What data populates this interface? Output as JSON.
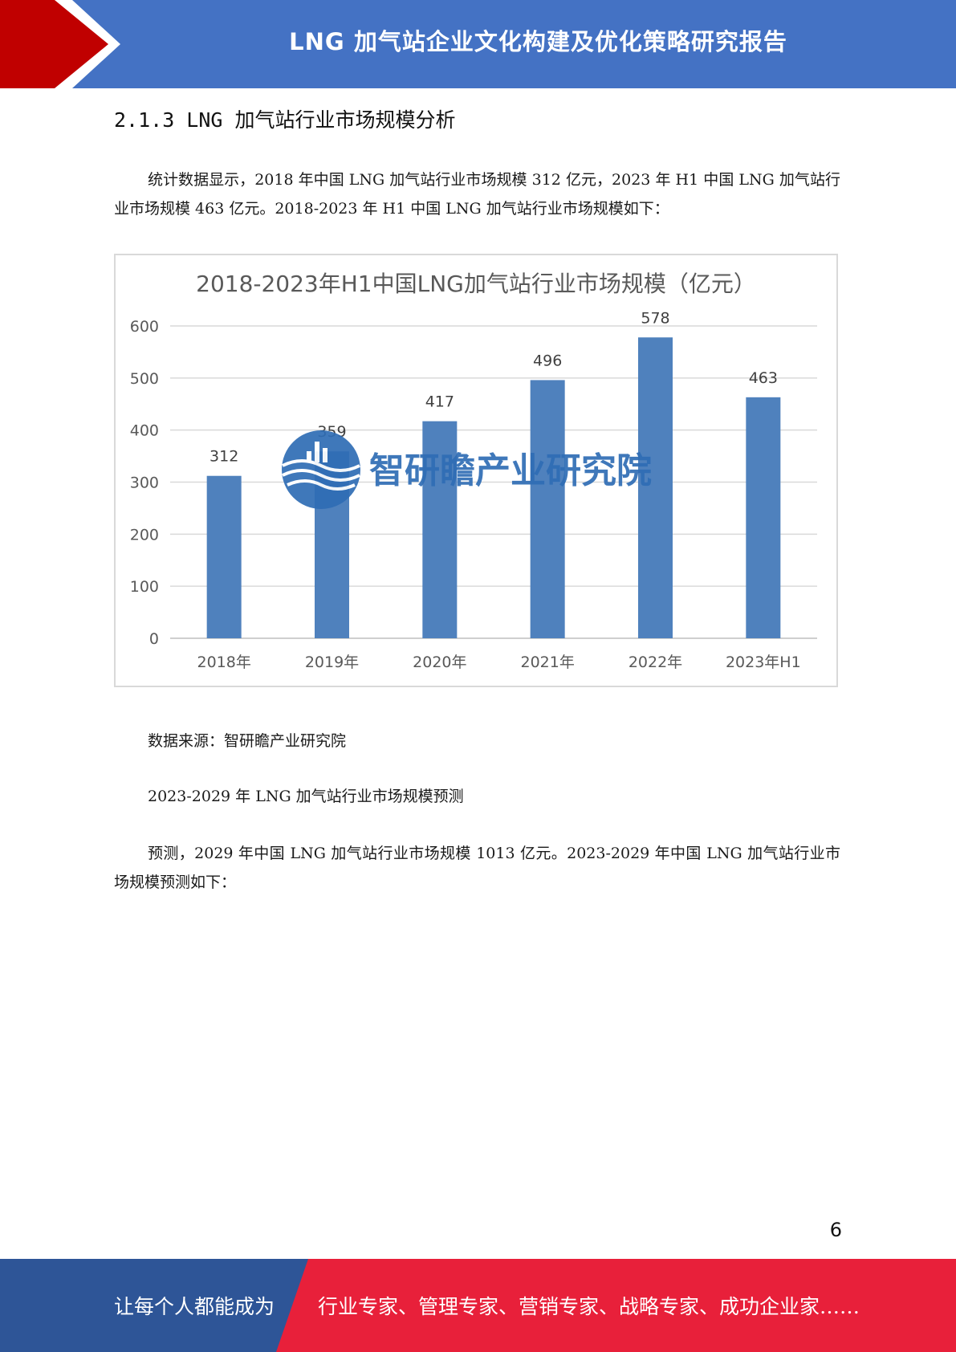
{
  "header": {
    "title": "LNG 加气站企业文化构建及优化策略研究报告"
  },
  "section": {
    "heading": "2.1.3 LNG 加气站行业市场规模分析"
  },
  "paragraphs": {
    "intro": "统计数据显示，2018 年中国 LNG 加气站行业市场规模 312 亿元，2023 年 H1 中国 LNG 加气站行业市场规模 463 亿元。2018-2023 年 H1 中国 LNG 加气站行业市场规模如下：",
    "source": "数据来源：智研瞻产业研究院",
    "forecast_heading": "2023-2029 年 LNG 加气站行业市场规模预测",
    "forecast": "预测，2029 年中国 LNG 加气站行业市场规模 1013 亿元。2023-2029 年中国 LNG 加气站行业市场规模预测如下："
  },
  "chart_data": {
    "type": "bar",
    "title": "2018-2023年H1中国LNG加气站行业市场规模（亿元）",
    "categories": [
      "2018年",
      "2019年",
      "2020年",
      "2021年",
      "2022年",
      "2023年H1"
    ],
    "values": [
      312,
      359,
      417,
      496,
      578,
      463
    ],
    "yticks": [
      0,
      100,
      200,
      300,
      400,
      500,
      600
    ],
    "ylim": [
      0,
      600
    ],
    "bar_color": "#4f81bd",
    "grid": true,
    "legend": "none",
    "watermark": "智研瞻产业研究院"
  },
  "page": {
    "number": "6"
  },
  "footer": {
    "left": "让每个人都能成为",
    "right": "行业专家、管理专家、营销专家、战略专家、成功企业家……"
  },
  "colors": {
    "header_blue": "#4472c4",
    "accent_red": "#c00000",
    "footer_blue": "#2e5597",
    "footer_red": "#e8203a"
  }
}
